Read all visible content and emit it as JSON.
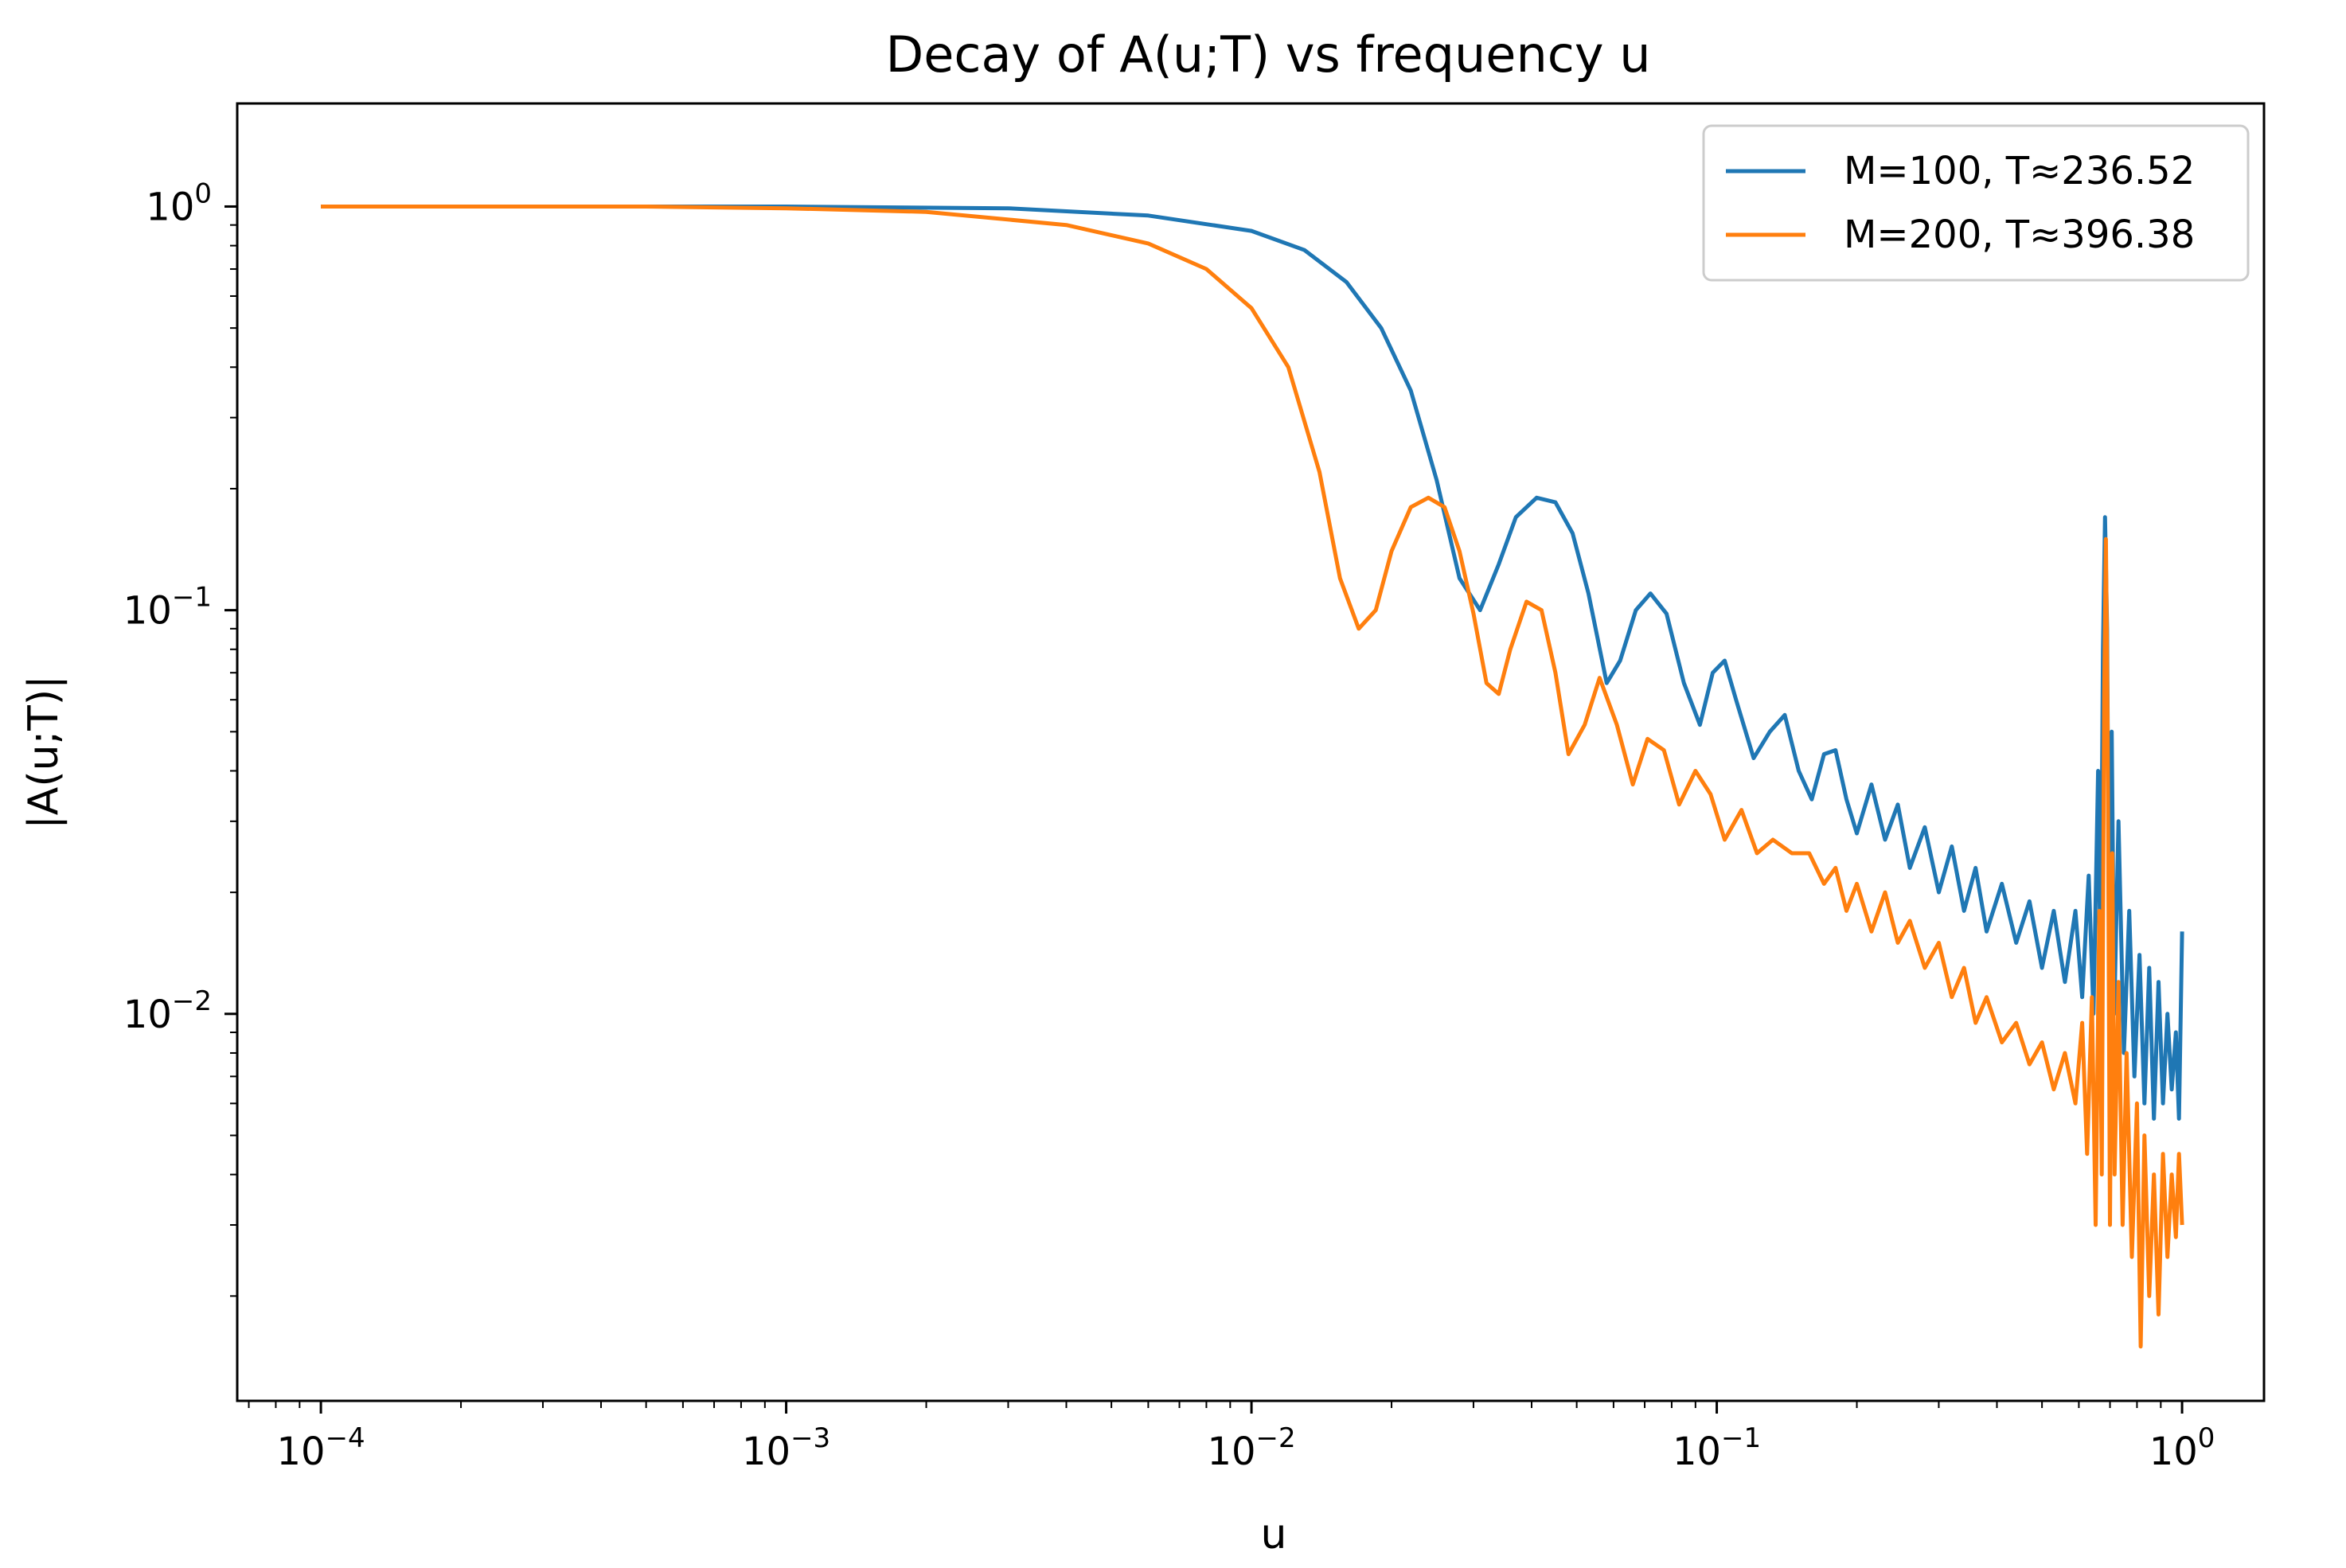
{
  "chart_data": {
    "type": "line",
    "title": "Decay of A(u;T) vs frequency u",
    "xlabel": "u",
    "ylabel": "|A(u;T)|",
    "xscale": "log",
    "yscale": "log",
    "xlim": [
      6.61e-05,
      1.5
    ],
    "ylim": [
      0.0011,
      1.8
    ],
    "grid": false,
    "legend_position": "top-right",
    "x_ticks": [
      {
        "value": 0.0001,
        "base": "10",
        "exp": "−4"
      },
      {
        "value": 0.001,
        "base": "10",
        "exp": "−3"
      },
      {
        "value": 0.01,
        "base": "10",
        "exp": "−2"
      },
      {
        "value": 0.1,
        "base": "10",
        "exp": "−1"
      },
      {
        "value": 1,
        "base": "10",
        "exp": "0"
      }
    ],
    "y_ticks": [
      {
        "value": 1,
        "base": "10",
        "exp": "0"
      },
      {
        "value": 0.1,
        "base": "10",
        "exp": "−1"
      },
      {
        "value": 0.01,
        "base": "10",
        "exp": "−2"
      }
    ],
    "series": [
      {
        "name": "M=100, T≈236.52",
        "color": "#1f77b4",
        "points": [
          [
            0.0001,
            1.0
          ],
          [
            0.001,
            1.0
          ],
          [
            0.003,
            0.99
          ],
          [
            0.006,
            0.95
          ],
          [
            0.01,
            0.87
          ],
          [
            0.013,
            0.78
          ],
          [
            0.016,
            0.65
          ],
          [
            0.019,
            0.5
          ],
          [
            0.022,
            0.35
          ],
          [
            0.025,
            0.21
          ],
          [
            0.028,
            0.12
          ],
          [
            0.031,
            0.1
          ],
          [
            0.034,
            0.13
          ],
          [
            0.037,
            0.17
          ],
          [
            0.041,
            0.19
          ],
          [
            0.045,
            0.185
          ],
          [
            0.049,
            0.155
          ],
          [
            0.053,
            0.11
          ],
          [
            0.058,
            0.066
          ],
          [
            0.062,
            0.075
          ],
          [
            0.067,
            0.1
          ],
          [
            0.072,
            0.11
          ],
          [
            0.078,
            0.098
          ],
          [
            0.085,
            0.066
          ],
          [
            0.092,
            0.052
          ],
          [
            0.098,
            0.07
          ],
          [
            0.104,
            0.075
          ],
          [
            0.11,
            0.06
          ],
          [
            0.12,
            0.043
          ],
          [
            0.13,
            0.05
          ],
          [
            0.14,
            0.055
          ],
          [
            0.15,
            0.04
          ],
          [
            0.16,
            0.034
          ],
          [
            0.17,
            0.044
          ],
          [
            0.18,
            0.045
          ],
          [
            0.19,
            0.034
          ],
          [
            0.2,
            0.028
          ],
          [
            0.215,
            0.037
          ],
          [
            0.23,
            0.027
          ],
          [
            0.245,
            0.033
          ],
          [
            0.26,
            0.023
          ],
          [
            0.28,
            0.029
          ],
          [
            0.3,
            0.02
          ],
          [
            0.32,
            0.026
          ],
          [
            0.34,
            0.018
          ],
          [
            0.36,
            0.023
          ],
          [
            0.38,
            0.016
          ],
          [
            0.41,
            0.021
          ],
          [
            0.44,
            0.015
          ],
          [
            0.47,
            0.019
          ],
          [
            0.5,
            0.013
          ],
          [
            0.53,
            0.018
          ],
          [
            0.56,
            0.012
          ],
          [
            0.59,
            0.018
          ],
          [
            0.61,
            0.011
          ],
          [
            0.63,
            0.022
          ],
          [
            0.645,
            0.01
          ],
          [
            0.66,
            0.04
          ],
          [
            0.668,
            0.012
          ],
          [
            0.676,
            0.08
          ],
          [
            0.683,
            0.17
          ],
          [
            0.69,
            0.09
          ],
          [
            0.698,
            0.011
          ],
          [
            0.706,
            0.05
          ],
          [
            0.715,
            0.01
          ],
          [
            0.73,
            0.03
          ],
          [
            0.75,
            0.008
          ],
          [
            0.77,
            0.018
          ],
          [
            0.79,
            0.007
          ],
          [
            0.81,
            0.014
          ],
          [
            0.83,
            0.006
          ],
          [
            0.85,
            0.013
          ],
          [
            0.87,
            0.0055
          ],
          [
            0.89,
            0.012
          ],
          [
            0.91,
            0.006
          ],
          [
            0.93,
            0.01
          ],
          [
            0.95,
            0.0065
          ],
          [
            0.97,
            0.009
          ],
          [
            0.985,
            0.0055
          ],
          [
            1.0,
            0.016
          ]
        ]
      },
      {
        "name": "M=200, T≈396.38",
        "color": "#ff7f0e",
        "points": [
          [
            0.0001,
            1.0
          ],
          [
            0.0005,
            1.0
          ],
          [
            0.001,
            0.99
          ],
          [
            0.002,
            0.97
          ],
          [
            0.004,
            0.9
          ],
          [
            0.006,
            0.81
          ],
          [
            0.008,
            0.7
          ],
          [
            0.01,
            0.56
          ],
          [
            0.012,
            0.4
          ],
          [
            0.014,
            0.22
          ],
          [
            0.0155,
            0.12
          ],
          [
            0.017,
            0.09
          ],
          [
            0.0185,
            0.1
          ],
          [
            0.02,
            0.14
          ],
          [
            0.022,
            0.18
          ],
          [
            0.024,
            0.19
          ],
          [
            0.026,
            0.18
          ],
          [
            0.028,
            0.14
          ],
          [
            0.03,
            0.098
          ],
          [
            0.032,
            0.066
          ],
          [
            0.034,
            0.062
          ],
          [
            0.036,
            0.08
          ],
          [
            0.039,
            0.105
          ],
          [
            0.042,
            0.1
          ],
          [
            0.045,
            0.07
          ],
          [
            0.048,
            0.044
          ],
          [
            0.052,
            0.052
          ],
          [
            0.056,
            0.068
          ],
          [
            0.061,
            0.052
          ],
          [
            0.066,
            0.037
          ],
          [
            0.071,
            0.048
          ],
          [
            0.077,
            0.045
          ],
          [
            0.083,
            0.033
          ],
          [
            0.09,
            0.04
          ],
          [
            0.097,
            0.035
          ],
          [
            0.104,
            0.027
          ],
          [
            0.113,
            0.032
          ],
          [
            0.122,
            0.025
          ],
          [
            0.132,
            0.027
          ],
          [
            0.145,
            0.025
          ],
          [
            0.158,
            0.025
          ],
          [
            0.17,
            0.021
          ],
          [
            0.18,
            0.023
          ],
          [
            0.19,
            0.018
          ],
          [
            0.2,
            0.021
          ],
          [
            0.215,
            0.016
          ],
          [
            0.23,
            0.02
          ],
          [
            0.245,
            0.015
          ],
          [
            0.26,
            0.017
          ],
          [
            0.28,
            0.013
          ],
          [
            0.3,
            0.015
          ],
          [
            0.32,
            0.011
          ],
          [
            0.34,
            0.013
          ],
          [
            0.36,
            0.0095
          ],
          [
            0.38,
            0.011
          ],
          [
            0.41,
            0.0085
          ],
          [
            0.44,
            0.0095
          ],
          [
            0.47,
            0.0075
          ],
          [
            0.5,
            0.0085
          ],
          [
            0.53,
            0.0065
          ],
          [
            0.56,
            0.008
          ],
          [
            0.59,
            0.006
          ],
          [
            0.61,
            0.0095
          ],
          [
            0.625,
            0.0045
          ],
          [
            0.64,
            0.011
          ],
          [
            0.652,
            0.003
          ],
          [
            0.664,
            0.018
          ],
          [
            0.672,
            0.004
          ],
          [
            0.68,
            0.06
          ],
          [
            0.686,
            0.15
          ],
          [
            0.692,
            0.05
          ],
          [
            0.7,
            0.003
          ],
          [
            0.708,
            0.025
          ],
          [
            0.716,
            0.004
          ],
          [
            0.73,
            0.012
          ],
          [
            0.745,
            0.003
          ],
          [
            0.76,
            0.008
          ],
          [
            0.78,
            0.0025
          ],
          [
            0.8,
            0.006
          ],
          [
            0.815,
            0.0015
          ],
          [
            0.83,
            0.005
          ],
          [
            0.85,
            0.002
          ],
          [
            0.87,
            0.004
          ],
          [
            0.89,
            0.0018
          ],
          [
            0.91,
            0.0045
          ],
          [
            0.93,
            0.0025
          ],
          [
            0.95,
            0.004
          ],
          [
            0.97,
            0.0028
          ],
          [
            0.985,
            0.0045
          ],
          [
            1.0,
            0.003
          ]
        ]
      }
    ]
  }
}
